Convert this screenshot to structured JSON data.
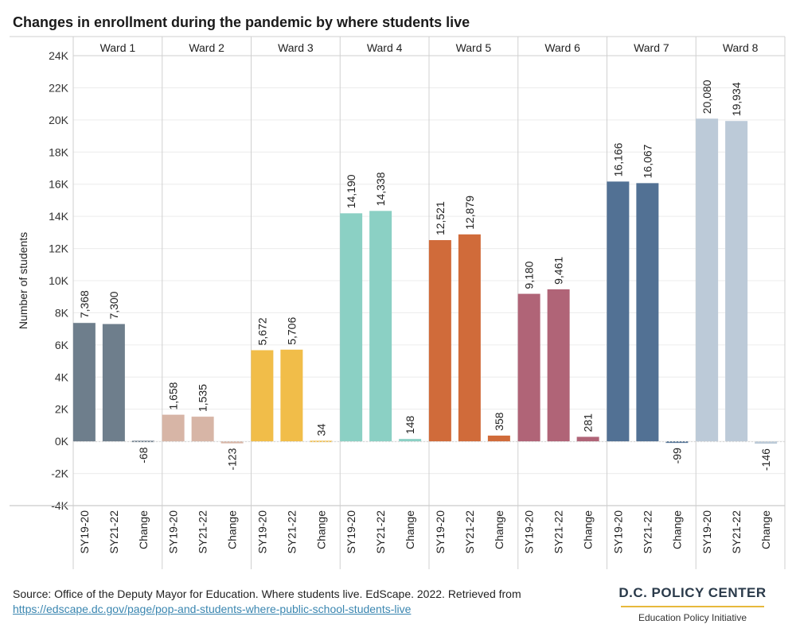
{
  "title": "Changes in enrollment during the pandemic by where students live",
  "footer": {
    "source": "Source: Office of the Deputy Mayor for Education. Where students live. EdScape. 2022. Retrieved from",
    "link": "https://edscape.dc.gov/page/pop-and-students-where-public-school-students-live"
  },
  "brand": {
    "name": "D.C. POLICY CENTER",
    "subtitle": "Education Policy Initiative",
    "accent_color": "#e7b93b"
  },
  "chart_data": {
    "type": "bar",
    "ylabel": "Number of students",
    "ylim": [
      -4000,
      24000
    ],
    "yticks": [
      -4000,
      -2000,
      0,
      2000,
      4000,
      6000,
      8000,
      10000,
      12000,
      14000,
      16000,
      18000,
      20000,
      22000,
      24000
    ],
    "ytick_labels": [
      "-4K",
      "-2K",
      "0K",
      "2K",
      "4K",
      "6K",
      "8K",
      "10K",
      "12K",
      "14K",
      "16K",
      "18K",
      "20K",
      "22K",
      "24K"
    ],
    "categories": [
      "SY19-20",
      "SY21-22",
      "Change"
    ],
    "groups": [
      {
        "name": "Ward 1",
        "color": "#6e7e8c",
        "values": [
          7368,
          7300,
          -68
        ],
        "labels": [
          "7,368",
          "7,300",
          "-68"
        ]
      },
      {
        "name": "Ward 2",
        "color": "#d7b5a6",
        "values": [
          1658,
          1535,
          -123
        ],
        "labels": [
          "1,658",
          "1,535",
          "-123"
        ]
      },
      {
        "name": "Ward 3",
        "color": "#f1bd49",
        "values": [
          5672,
          5706,
          34
        ],
        "labels": [
          "5,672",
          "5,706",
          "34"
        ]
      },
      {
        "name": "Ward 4",
        "color": "#8bd0c4",
        "values": [
          14190,
          14338,
          148
        ],
        "labels": [
          "14,190",
          "14,338",
          "148"
        ]
      },
      {
        "name": "Ward 5",
        "color": "#d06b3a",
        "values": [
          12521,
          12879,
          358
        ],
        "labels": [
          "12,521",
          "12,879",
          "358"
        ]
      },
      {
        "name": "Ward 6",
        "color": "#b06477",
        "values": [
          9180,
          9461,
          281
        ],
        "labels": [
          "9,180",
          "9,461",
          "281"
        ]
      },
      {
        "name": "Ward 7",
        "color": "#527194",
        "values": [
          16166,
          16067,
          -99
        ],
        "labels": [
          "16,166",
          "16,067",
          "-99"
        ]
      },
      {
        "name": "Ward 8",
        "color": "#bccad8",
        "values": [
          20080,
          19934,
          -146
        ],
        "labels": [
          "20,080",
          "19,934",
          "-146"
        ]
      }
    ]
  }
}
